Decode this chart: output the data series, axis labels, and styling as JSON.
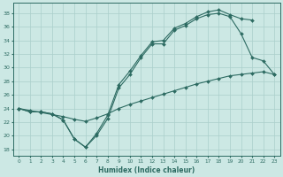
{
  "xlabel": "Humidex (Indice chaleur)",
  "bg_color": "#cce8e4",
  "grid_color": "#aacfcb",
  "line_color": "#2d6b62",
  "xlim": [
    -0.5,
    23.5
  ],
  "ylim": [
    17,
    39.5
  ],
  "xticks": [
    0,
    1,
    2,
    3,
    4,
    5,
    6,
    7,
    8,
    9,
    10,
    11,
    12,
    13,
    14,
    15,
    16,
    17,
    18,
    19,
    20,
    21,
    22,
    23
  ],
  "yticks": [
    18,
    20,
    22,
    24,
    26,
    28,
    30,
    32,
    34,
    36,
    38
  ],
  "curve1_x": [
    0,
    1,
    2,
    3,
    4,
    5,
    6,
    7,
    8,
    9,
    10,
    11,
    12,
    13,
    14,
    15,
    16,
    17,
    18,
    19,
    20,
    21
  ],
  "curve1_y": [
    24.0,
    23.5,
    23.5,
    23.2,
    22.3,
    19.5,
    18.3,
    20.3,
    23.0,
    27.5,
    29.5,
    31.8,
    33.8,
    34.0,
    35.8,
    36.5,
    37.5,
    38.2,
    38.5,
    37.8,
    37.2,
    37.0
  ],
  "curve2_x": [
    0,
    1,
    2,
    3,
    4,
    5,
    6,
    7,
    8,
    9,
    10,
    11,
    12,
    13,
    14,
    15,
    16,
    17,
    18,
    19,
    20,
    21,
    22,
    23
  ],
  "curve2_y": [
    24.0,
    23.5,
    23.5,
    23.2,
    22.3,
    19.5,
    18.3,
    20.0,
    22.5,
    27.0,
    29.0,
    31.5,
    33.5,
    33.5,
    35.5,
    36.2,
    37.2,
    37.8,
    38.0,
    37.5,
    35.0,
    31.5,
    31.0,
    29.0
  ],
  "curve3_x": [
    0,
    1,
    2,
    3,
    4,
    5,
    6,
    7,
    8,
    9,
    10,
    11,
    12,
    13,
    14,
    15,
    16,
    17,
    18,
    19,
    20,
    21,
    22,
    23
  ],
  "curve3_y": [
    24.0,
    23.7,
    23.4,
    23.1,
    22.8,
    22.4,
    22.1,
    22.6,
    23.2,
    24.0,
    24.6,
    25.1,
    25.6,
    26.1,
    26.6,
    27.1,
    27.6,
    28.0,
    28.4,
    28.8,
    29.0,
    29.2,
    29.4,
    29.0
  ]
}
